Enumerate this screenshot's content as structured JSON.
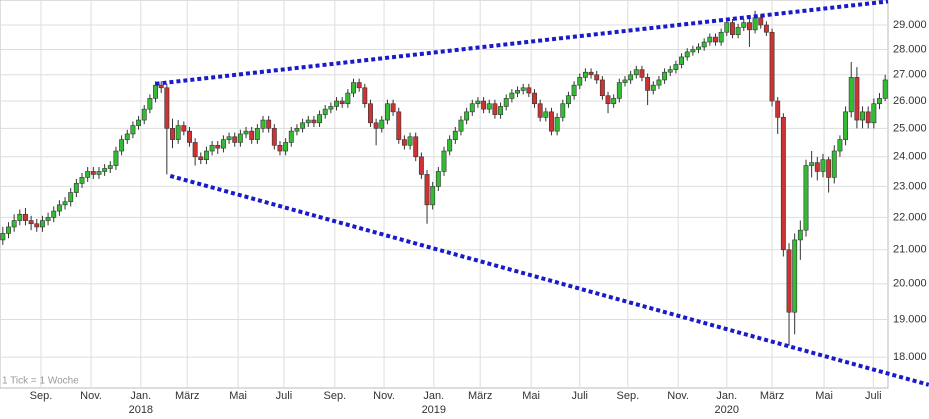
{
  "chart_data": {
    "type": "candlestick",
    "annotation": "1 Tick = 1 Woche",
    "log_scale": true,
    "grid": true,
    "up_color": "#33bb33",
    "down_color": "#cc3333",
    "trendline_color": "#1a1acc",
    "ylim": [
      17220,
      30060
    ],
    "yticks": [
      {
        "value": 18000,
        "label": "18.000"
      },
      {
        "value": 19000,
        "label": "19.000"
      },
      {
        "value": 20000,
        "label": "20.000"
      },
      {
        "value": 21000,
        "label": "21.000"
      },
      {
        "value": 22000,
        "label": "22.000"
      },
      {
        "value": 23000,
        "label": "23.000"
      },
      {
        "value": 24000,
        "label": "24.000"
      },
      {
        "value": 25000,
        "label": "25.000"
      },
      {
        "value": 26000,
        "label": "26.000"
      },
      {
        "value": 27000,
        "label": "27.000"
      },
      {
        "value": 28000,
        "label": "28.000"
      },
      {
        "value": 29000,
        "label": "29.000"
      }
    ],
    "xlim": [
      -0.5,
      156.5
    ],
    "xticks": [
      {
        "value": 6.75,
        "label": "Sep."
      },
      {
        "value": 15.6,
        "label": "Nov."
      },
      {
        "value": 24.4,
        "label": "Jan."
      },
      {
        "value": 32.6,
        "label": "März"
      },
      {
        "value": 41.6,
        "label": "Mai"
      },
      {
        "value": 49.7,
        "label": "Juli"
      },
      {
        "value": 58.7,
        "label": "Sep."
      },
      {
        "value": 67.4,
        "label": "Nov."
      },
      {
        "value": 76.2,
        "label": "Jan."
      },
      {
        "value": 84.4,
        "label": "März"
      },
      {
        "value": 93.4,
        "label": "Mai"
      },
      {
        "value": 102.0,
        "label": "Juli"
      },
      {
        "value": 110.5,
        "label": "Sep."
      },
      {
        "value": 119.4,
        "label": "Nov."
      },
      {
        "value": 128.0,
        "label": "Jan."
      },
      {
        "value": 136.0,
        "label": "März"
      },
      {
        "value": 145.2,
        "label": "Mai"
      },
      {
        "value": 153.9,
        "label": "Juli"
      }
    ],
    "year_ticks": [
      {
        "value": 24.4,
        "label": "2018"
      },
      {
        "value": 76.2,
        "label": "2019"
      },
      {
        "value": 128.0,
        "label": "2020"
      }
    ],
    "trendlines": [
      {
        "x": [
          27,
          156.5
        ],
        "y": [
          26650,
          30000
        ]
      },
      {
        "x": [
          29.6,
          163.7
        ],
        "y": [
          23350,
          17300
        ]
      }
    ],
    "candles": [
      [
        21300,
        21700,
        21150,
        21500
      ],
      [
        21500,
        21850,
        21350,
        21700
      ],
      [
        21700,
        22100,
        21550,
        21900
      ],
      [
        21900,
        22250,
        21750,
        22100
      ],
      [
        22100,
        22300,
        21750,
        21900
      ],
      [
        21900,
        22050,
        21600,
        21800
      ],
      [
        21800,
        21950,
        21550,
        21700
      ],
      [
        21700,
        22050,
        21550,
        21900
      ],
      [
        21900,
        22150,
        21750,
        22000
      ],
      [
        22000,
        22350,
        21850,
        22200
      ],
      [
        22200,
        22550,
        22050,
        22400
      ],
      [
        22400,
        22650,
        22250,
        22500
      ],
      [
        22500,
        22950,
        22350,
        22800
      ],
      [
        22800,
        23250,
        22650,
        23100
      ],
      [
        23100,
        23450,
        22950,
        23300
      ],
      [
        23300,
        23650,
        23150,
        23500
      ],
      [
        23500,
        23650,
        23250,
        23400
      ],
      [
        23400,
        23650,
        23250,
        23500
      ],
      [
        23500,
        23750,
        23350,
        23600
      ],
      [
        23600,
        23850,
        23450,
        23700
      ],
      [
        23700,
        24350,
        23550,
        24200
      ],
      [
        24200,
        24750,
        24050,
        24600
      ],
      [
        24600,
        24950,
        24450,
        24800
      ],
      [
        24800,
        25250,
        24650,
        25100
      ],
      [
        25100,
        25450,
        24950,
        25300
      ],
      [
        25300,
        25850,
        25150,
        25700
      ],
      [
        25700,
        26250,
        25550,
        26100
      ],
      [
        26100,
        26750,
        25950,
        26600
      ],
      [
        26600,
        26750,
        26300,
        26500
      ],
      [
        26500,
        26650,
        23400,
        25000
      ],
      [
        25000,
        25350,
        24300,
        24600
      ],
      [
        24600,
        25300,
        24450,
        25100
      ],
      [
        25100,
        25250,
        24750,
        24900
      ],
      [
        24900,
        25050,
        24350,
        24500
      ],
      [
        24500,
        24650,
        23700,
        24000
      ],
      [
        24000,
        24150,
        23750,
        23900
      ],
      [
        23900,
        24350,
        23750,
        24200
      ],
      [
        24200,
        24550,
        24050,
        24400
      ],
      [
        24400,
        24550,
        24100,
        24300
      ],
      [
        24300,
        24750,
        24150,
        24600
      ],
      [
        24600,
        24850,
        24450,
        24700
      ],
      [
        24700,
        24850,
        24350,
        24500
      ],
      [
        24500,
        24950,
        24350,
        24800
      ],
      [
        24800,
        25050,
        24650,
        24900
      ],
      [
        24900,
        25050,
        24450,
        24600
      ],
      [
        24600,
        25150,
        24450,
        25000
      ],
      [
        25000,
        25450,
        24850,
        25300
      ],
      [
        25300,
        25450,
        24850,
        25000
      ],
      [
        25000,
        25150,
        24250,
        24400
      ],
      [
        24400,
        24550,
        24050,
        24200
      ],
      [
        24200,
        24650,
        24050,
        24500
      ],
      [
        24500,
        25050,
        24350,
        24900
      ],
      [
        24900,
        25150,
        24750,
        25000
      ],
      [
        25000,
        25350,
        24850,
        25200
      ],
      [
        25200,
        25450,
        25050,
        25300
      ],
      [
        25300,
        25450,
        25050,
        25200
      ],
      [
        25200,
        25650,
        25050,
        25500
      ],
      [
        25500,
        25850,
        25350,
        25700
      ],
      [
        25700,
        25950,
        25550,
        25800
      ],
      [
        25800,
        26150,
        25650,
        26000
      ],
      [
        26000,
        26150,
        25750,
        25900
      ],
      [
        25900,
        26450,
        25750,
        26300
      ],
      [
        26300,
        26850,
        26150,
        26700
      ],
      [
        26700,
        26850,
        26350,
        26500
      ],
      [
        26500,
        26650,
        25750,
        25900
      ],
      [
        25900,
        26050,
        25050,
        25200
      ],
      [
        25200,
        25350,
        24400,
        25000
      ],
      [
        25000,
        25450,
        24850,
        25300
      ],
      [
        25300,
        26050,
        25150,
        25900
      ],
      [
        25900,
        26050,
        25450,
        25600
      ],
      [
        25600,
        25750,
        24450,
        24600
      ],
      [
        24600,
        24750,
        24250,
        24400
      ],
      [
        24400,
        24850,
        24250,
        24700
      ],
      [
        24700,
        24850,
        23850,
        24000
      ],
      [
        24000,
        24150,
        23250,
        23400
      ],
      [
        23400,
        23550,
        21800,
        22400
      ],
      [
        22400,
        23150,
        22250,
        23000
      ],
      [
        23000,
        23650,
        22850,
        23500
      ],
      [
        23500,
        24350,
        23350,
        24200
      ],
      [
        24200,
        24750,
        24050,
        24600
      ],
      [
        24600,
        25050,
        24450,
        24900
      ],
      [
        24900,
        25450,
        24750,
        25300
      ],
      [
        25300,
        25750,
        25150,
        25600
      ],
      [
        25600,
        26050,
        25450,
        25900
      ],
      [
        25900,
        26150,
        25750,
        26000
      ],
      [
        26000,
        26150,
        25550,
        25700
      ],
      [
        25700,
        26050,
        25550,
        25900
      ],
      [
        25900,
        26050,
        25350,
        25500
      ],
      [
        25500,
        25950,
        25350,
        25800
      ],
      [
        25800,
        26250,
        25650,
        26100
      ],
      [
        26100,
        26450,
        25950,
        26300
      ],
      [
        26300,
        26550,
        26150,
        26400
      ],
      [
        26400,
        26650,
        26250,
        26500
      ],
      [
        26500,
        26650,
        26150,
        26300
      ],
      [
        26300,
        26450,
        25750,
        25900
      ],
      [
        25900,
        26050,
        25250,
        25400
      ],
      [
        25400,
        25750,
        25250,
        25600
      ],
      [
        25600,
        25750,
        24750,
        24900
      ],
      [
        24900,
        25550,
        24750,
        25400
      ],
      [
        25400,
        26050,
        25250,
        25900
      ],
      [
        25900,
        26350,
        25750,
        26200
      ],
      [
        26200,
        26750,
        26050,
        26600
      ],
      [
        26600,
        27050,
        26450,
        26900
      ],
      [
        26900,
        27250,
        26750,
        27100
      ],
      [
        27100,
        27250,
        26850,
        27000
      ],
      [
        27000,
        27150,
        26650,
        26800
      ],
      [
        26800,
        26950,
        26050,
        26200
      ],
      [
        26200,
        26350,
        25550,
        25900
      ],
      [
        25900,
        26250,
        25750,
        26100
      ],
      [
        26100,
        26850,
        25950,
        26700
      ],
      [
        26700,
        26950,
        26550,
        26800
      ],
      [
        26800,
        27150,
        26650,
        27000
      ],
      [
        27000,
        27350,
        26850,
        27200
      ],
      [
        27200,
        27350,
        26750,
        26900
      ],
      [
        26900,
        27050,
        25850,
        26400
      ],
      [
        26400,
        26750,
        26250,
        26600
      ],
      [
        26600,
        26950,
        26450,
        26800
      ],
      [
        26800,
        27250,
        26650,
        27100
      ],
      [
        27100,
        27350,
        26950,
        27200
      ],
      [
        27200,
        27550,
        27050,
        27400
      ],
      [
        27400,
        27850,
        27250,
        27700
      ],
      [
        27700,
        28050,
        27550,
        27900
      ],
      [
        27900,
        28150,
        27750,
        28000
      ],
      [
        28000,
        28250,
        27850,
        28100
      ],
      [
        28100,
        28450,
        27950,
        28300
      ],
      [
        28300,
        28650,
        28150,
        28500
      ],
      [
        28500,
        28650,
        28150,
        28300
      ],
      [
        28300,
        28850,
        28150,
        28700
      ],
      [
        28700,
        29250,
        28550,
        29100
      ],
      [
        29100,
        29250,
        28450,
        28600
      ],
      [
        28600,
        29050,
        28450,
        28900
      ],
      [
        28900,
        29250,
        28750,
        29100
      ],
      [
        29100,
        29250,
        28100,
        28800
      ],
      [
        28800,
        29600,
        28650,
        29300
      ],
      [
        29300,
        29450,
        28850,
        29000
      ],
      [
        29000,
        29150,
        28550,
        28700
      ],
      [
        28700,
        28850,
        25800,
        26000
      ],
      [
        26000,
        26150,
        24800,
        25400
      ],
      [
        25400,
        25550,
        20800,
        21000
      ],
      [
        21000,
        21200,
        18300,
        19200
      ],
      [
        19200,
        21500,
        18600,
        21300
      ],
      [
        21300,
        21900,
        20700,
        21600
      ],
      [
        21600,
        23900,
        21400,
        23700
      ],
      [
        23700,
        24200,
        23300,
        23800
      ],
      [
        23800,
        24000,
        23200,
        23500
      ],
      [
        23500,
        24100,
        23300,
        23900
      ],
      [
        23900,
        24000,
        22800,
        23300
      ],
      [
        23300,
        24400,
        23100,
        24200
      ],
      [
        24200,
        24750,
        24000,
        24600
      ],
      [
        24600,
        25800,
        24400,
        25600
      ],
      [
        25600,
        27500,
        25400,
        26900
      ],
      [
        26900,
        27300,
        25000,
        25300
      ],
      [
        25300,
        25800,
        25000,
        25600
      ],
      [
        25600,
        25800,
        25000,
        25200
      ],
      [
        25200,
        26100,
        25000,
        25900
      ],
      [
        25900,
        26300,
        25700,
        26100
      ],
      [
        26100,
        27000,
        26000,
        26800
      ]
    ]
  }
}
